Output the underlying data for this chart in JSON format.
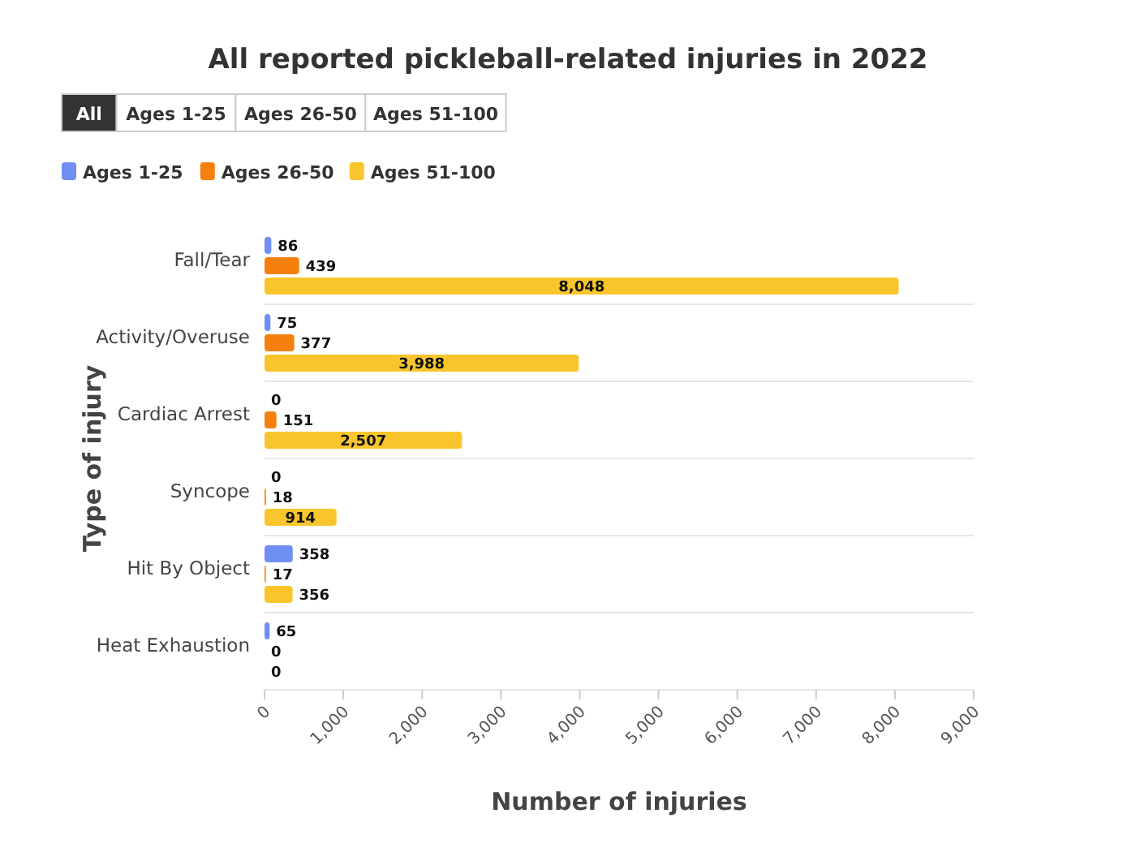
{
  "chart_data": {
    "type": "bar",
    "orientation": "horizontal",
    "title": "All reported pickleball-related injuries in 2022",
    "annotations": [
      "All",
      "Ages 1-25",
      "Ages 26-50",
      "Ages 51-100"
    ],
    "xlabel": "Number of injuries",
    "ylabel": "Type of injury",
    "categories": [
      "Fall/Tear",
      "Activity/Overuse",
      "Cardiac Arrest",
      "Syncope",
      "Hit By Object",
      "Heat Exhaustion"
    ],
    "series": [
      {
        "name": "Ages 1-25",
        "color": "#6f8ff5",
        "values": [
          86,
          75,
          0,
          0,
          358,
          65
        ],
        "value_labels": [
          "86",
          "75",
          "0",
          "0",
          "358",
          "65"
        ]
      },
      {
        "name": "Ages 26-50",
        "color": "#f5800e",
        "values": [
          439,
          377,
          151,
          18,
          17,
          0
        ],
        "value_labels": [
          "439",
          "377",
          "151",
          "18",
          "17",
          "0"
        ]
      },
      {
        "name": "Ages 51-100",
        "color": "#f8c62c",
        "values": [
          8048,
          3988,
          2507,
          914,
          356,
          0
        ],
        "value_labels": [
          "8,048",
          "3,988",
          "2,507",
          "914",
          "356",
          "0"
        ]
      }
    ],
    "xlim": [
      0,
      9000
    ],
    "xticks": [
      0,
      {
        "value": 1000,
        "label": "1,000"
      },
      {
        "value": 2000,
        "label": "2,000"
      },
      {
        "value": 3000,
        "label": "3,000"
      },
      {
        "value": 4000,
        "label": "4,000"
      },
      {
        "value": 5000,
        "label": "5,000"
      },
      {
        "value": 6000,
        "label": "6,000"
      },
      {
        "value": 7000,
        "label": "7,000"
      },
      {
        "value": 8000,
        "label": "8,000"
      },
      {
        "value": 9000,
        "label": "9,000"
      }
    ],
    "grid": "y",
    "legend": "top left"
  }
}
